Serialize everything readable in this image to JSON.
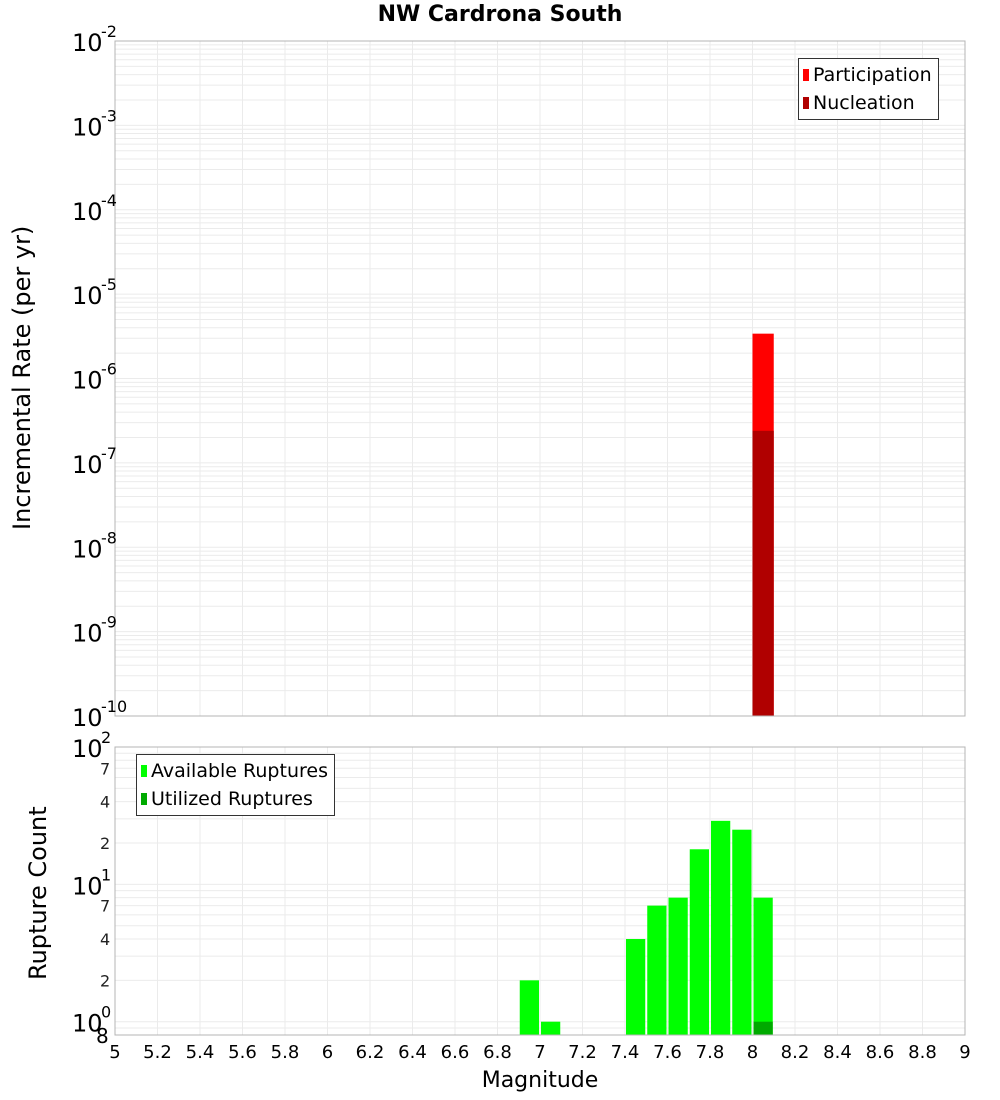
{
  "title": "NW Cardrona South",
  "chart_data": [
    {
      "type": "bar",
      "title": "NW Cardrona South",
      "xlabel": "Magnitude",
      "ylabel": "Incremental Rate (per yr)",
      "yscale": "log",
      "ylim": [
        1e-10,
        0.01
      ],
      "xlim": [
        5,
        9
      ],
      "grid": true,
      "legend_position": "top-right",
      "y_ticks": [
        "10^-2",
        "10^-3",
        "10^-4",
        "10^-5",
        "10^-6",
        "10^-7",
        "10^-8",
        "10^-9",
        "10^-10"
      ],
      "x": [
        8.05
      ],
      "bar_width": 0.1,
      "series": [
        {
          "name": "Participation",
          "color": "#ff0000",
          "values": [
            3.4e-06
          ]
        },
        {
          "name": "Nucleation",
          "color": "#b00000",
          "values": [
            2.4e-07
          ]
        }
      ]
    },
    {
      "type": "bar",
      "xlabel": "Magnitude",
      "ylabel": "Rupture Count",
      "yscale": "log",
      "ylim": [
        0.8,
        100
      ],
      "xlim": [
        5,
        9
      ],
      "grid": true,
      "legend_position": "top-left",
      "y_ticks": [
        "10^2",
        "7",
        "4",
        "2",
        "10^1",
        "7",
        "4",
        "2",
        "10^0",
        "8"
      ],
      "x_ticks": [
        "5",
        "5.2",
        "5.4",
        "5.6",
        "5.8",
        "6",
        "6.2",
        "6.4",
        "6.6",
        "6.8",
        "7",
        "7.2",
        "7.4",
        "7.6",
        "7.8",
        "8",
        "8.2",
        "8.4",
        "8.6",
        "8.8",
        "9"
      ],
      "x": [
        6.95,
        7.05,
        7.45,
        7.55,
        7.65,
        7.75,
        7.85,
        7.95,
        8.05
      ],
      "bar_width": 0.1,
      "series": [
        {
          "name": "Available Ruptures",
          "color": "#00ff00",
          "values": [
            2,
            1,
            4,
            7,
            8,
            18,
            29,
            25,
            8
          ]
        },
        {
          "name": "Utilized Ruptures",
          "color": "#00aa00",
          "values": [
            0,
            0,
            0,
            0,
            0,
            0,
            0,
            0,
            1
          ]
        }
      ]
    }
  ],
  "top": {
    "ylabel": "Incremental Rate (per yr)",
    "legend": [
      {
        "label": "Participation",
        "color": "#ff0000"
      },
      {
        "label": "Nucleation",
        "color": "#b00000"
      }
    ]
  },
  "bottom": {
    "ylabel": "Rupture Count",
    "legend": [
      {
        "label": "Available Ruptures",
        "color": "#00ff00"
      },
      {
        "label": "Utilized Ruptures",
        "color": "#00aa00"
      }
    ]
  },
  "xlabel": "Magnitude"
}
